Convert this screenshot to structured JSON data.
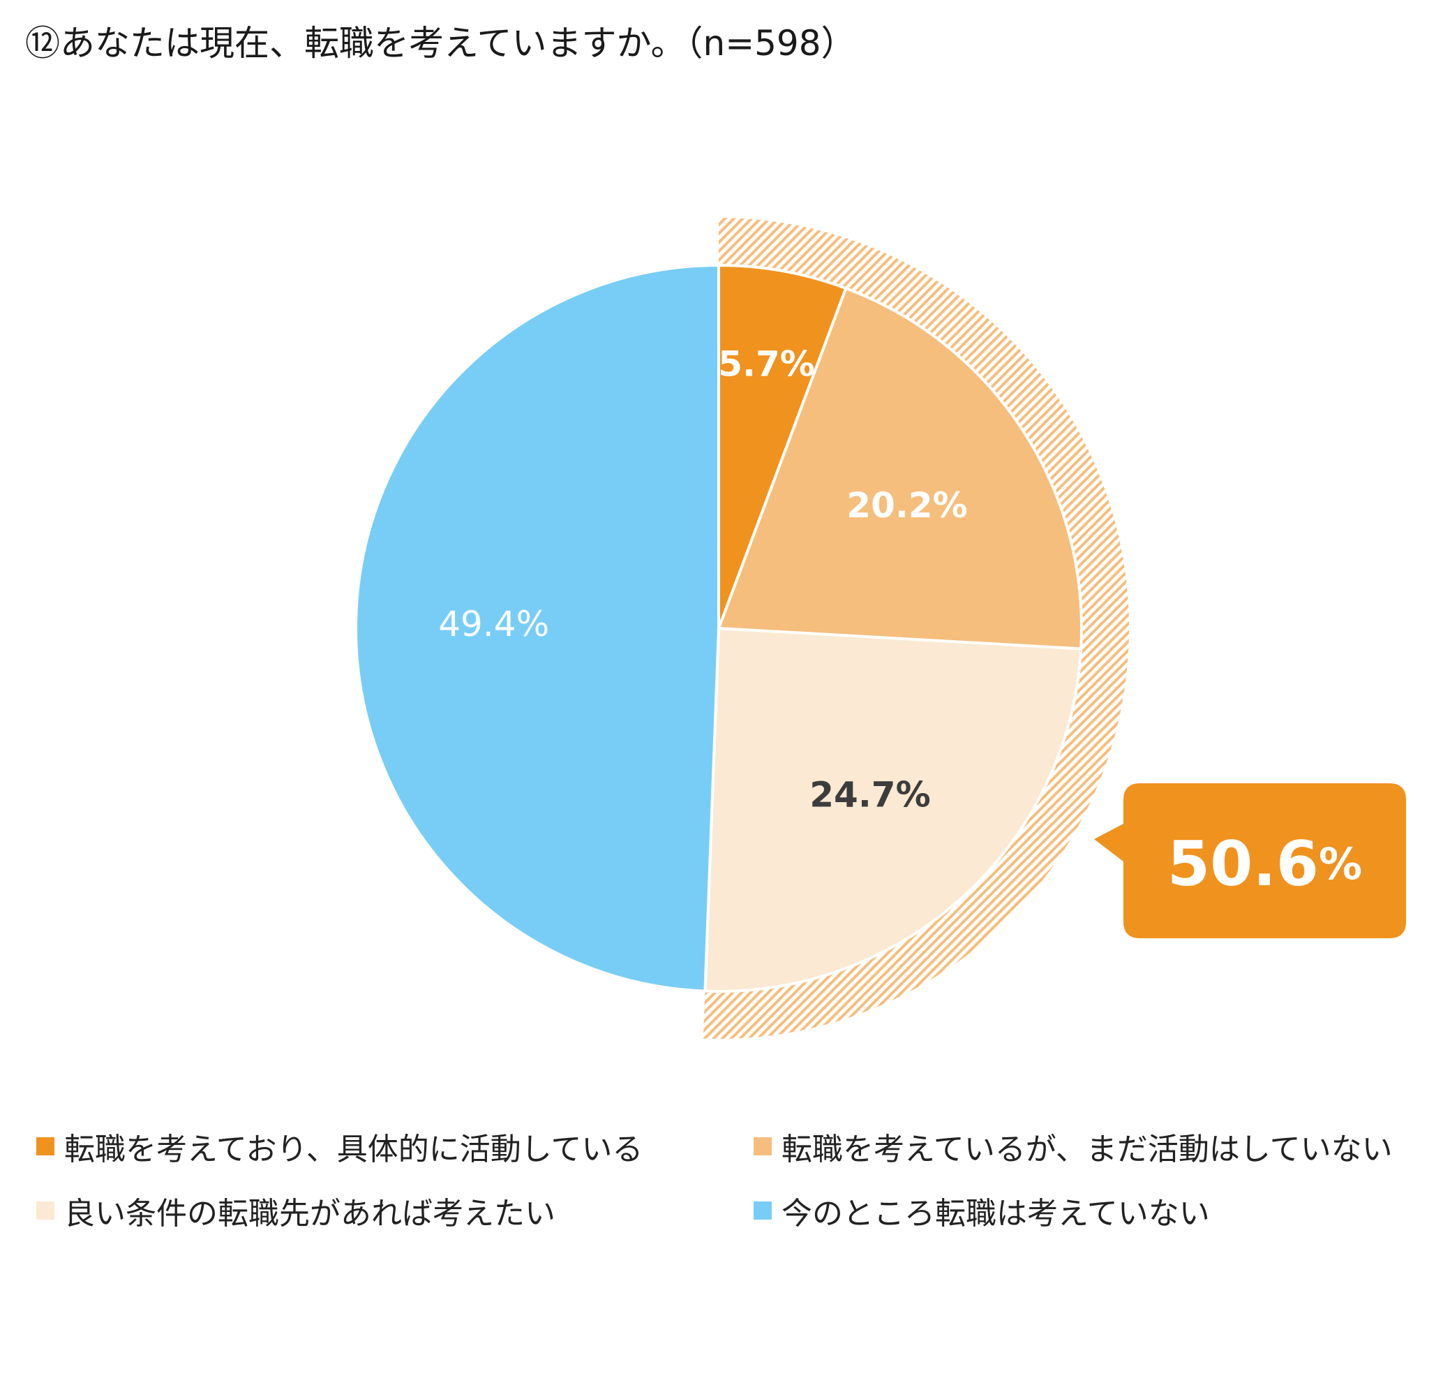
{
  "title": "⑫あなたは現在、転職を考えていますか。（n=598）",
  "chart_data": {
    "type": "pie",
    "title": "⑫あなたは現在、転職を考えていますか。（n=598）",
    "slices": [
      {
        "label": "転職を考えており、具体的に活動している",
        "value": 5.7,
        "display": "5.7%",
        "color": "#F0921E",
        "label_color": "#FFFFFF",
        "label_bold": true
      },
      {
        "label": "転職を考えているが、まだ活動はしていない",
        "value": 20.2,
        "display": "20.2%",
        "color": "#F5BE7C",
        "label_color": "#FFFFFF",
        "label_bold": true
      },
      {
        "label": "良い条件の転職先があれば考えたい",
        "value": 24.7,
        "display": "24.7%",
        "color": "#FCE9D3",
        "label_color": "#3C3C3C",
        "label_bold": true
      },
      {
        "label": "今のところ転職は考えていない",
        "value": 49.4,
        "display": "49.4%",
        "color": "#78CDF6",
        "label_color": "#FFFFFF",
        "label_bold": false
      }
    ],
    "highlight": {
      "value_text": "50.6",
      "unit_text": "%",
      "color": "#F0921E",
      "hatch_color": "#F5BE7C",
      "covers_slices": [
        0,
        1,
        2
      ]
    },
    "legend_placement": "bottom"
  },
  "legend": {
    "items": [
      {
        "label": "転職を考えており、具体的に活動している",
        "color": "#F0921E"
      },
      {
        "label": "転職を考えているが、まだ活動はしていない",
        "color": "#F5BE7C"
      },
      {
        "label": "良い条件の転職先があれば考えたい",
        "color": "#FCE9D3"
      },
      {
        "label": "今のところ転職は考えていない",
        "color": "#78CDF6"
      }
    ]
  }
}
